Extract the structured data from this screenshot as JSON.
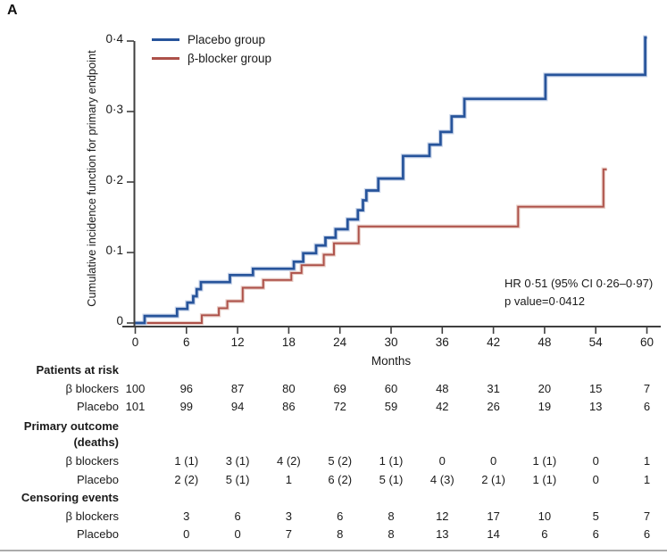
{
  "panel_label": "A",
  "colors": {
    "placebo": "#27549b",
    "placebo_halo": "#c9d5ea",
    "beta_blocker": "#ad5149",
    "beta_blocker_halo": "#e8ccc5",
    "axis": "#3f3f3f",
    "text": "#1a1a1a"
  },
  "legend": [
    {
      "label": "Placebo group",
      "color_key": "placebo"
    },
    {
      "label": "β-blocker group",
      "color_key": "beta_blocker"
    }
  ],
  "annotation": {
    "line1": "HR 0·51 (95% CI 0·26–0·97)",
    "line2": "p value=0·0412"
  },
  "chart_data": {
    "type": "line",
    "subtype": "step-cumulative-incidence",
    "title": "",
    "xlabel": "Months",
    "ylabel": "Cumulative incidence function for primary endpoint",
    "xlim": [
      0,
      60
    ],
    "ylim": [
      0,
      0.4
    ],
    "grid": false,
    "legend_position": "top-left-inside",
    "x_ticks": [
      {
        "v": 0,
        "label": "0"
      },
      {
        "v": 6,
        "label": "6"
      },
      {
        "v": 12,
        "label": "12"
      },
      {
        "v": 18,
        "label": "18"
      },
      {
        "v": 24,
        "label": "24"
      },
      {
        "v": 30,
        "label": "30"
      },
      {
        "v": 36,
        "label": "36"
      },
      {
        "v": 42,
        "label": "42"
      },
      {
        "v": 48,
        "label": "48"
      },
      {
        "v": 54,
        "label": "54"
      },
      {
        "v": 60,
        "label": "60"
      }
    ],
    "y_ticks": [
      {
        "v": 0,
        "label": "0"
      },
      {
        "v": 0.1,
        "label": "0·1"
      },
      {
        "v": 0.2,
        "label": "0·2"
      },
      {
        "v": 0.3,
        "label": "0·3"
      },
      {
        "v": 0.4,
        "label": "0·4"
      }
    ],
    "series": [
      {
        "name": "Placebo group",
        "color_key": "placebo",
        "steps": [
          [
            0,
            0
          ],
          [
            1.1,
            0.01
          ],
          [
            4.9,
            0.02
          ],
          [
            6.1,
            0.029
          ],
          [
            6.8,
            0.038
          ],
          [
            7.2,
            0.048
          ],
          [
            7.7,
            0.058
          ],
          [
            11.1,
            0.068
          ],
          [
            13.8,
            0.077
          ],
          [
            18.6,
            0.087
          ],
          [
            19.7,
            0.099
          ],
          [
            21.2,
            0.11
          ],
          [
            22.3,
            0.121
          ],
          [
            23.5,
            0.133
          ],
          [
            24.9,
            0.147
          ],
          [
            26.1,
            0.16
          ],
          [
            26.7,
            0.174
          ],
          [
            27.1,
            0.188
          ],
          [
            28.5,
            0.205
          ],
          [
            31.4,
            0.237
          ],
          [
            34.5,
            0.253
          ],
          [
            35.8,
            0.271
          ],
          [
            37.1,
            0.293
          ],
          [
            38.6,
            0.318
          ],
          [
            48.1,
            0.352
          ],
          [
            59.8,
            0.405
          ],
          [
            60,
            0.405
          ]
        ]
      },
      {
        "name": "β-blocker group",
        "color_key": "beta_blocker",
        "steps": [
          [
            0,
            0
          ],
          [
            7.8,
            0.011
          ],
          [
            9.8,
            0.021
          ],
          [
            10.8,
            0.031
          ],
          [
            12.6,
            0.05
          ],
          [
            15.0,
            0.061
          ],
          [
            18.3,
            0.071
          ],
          [
            19.5,
            0.082
          ],
          [
            22.1,
            0.097
          ],
          [
            23.3,
            0.113
          ],
          [
            26.2,
            0.137
          ],
          [
            44.9,
            0.165
          ],
          [
            54.9,
            0.218
          ],
          [
            55.3,
            0.218
          ]
        ]
      }
    ]
  },
  "risk_table": {
    "rows": [
      {
        "type": "header",
        "label": "Patients at risk"
      },
      {
        "type": "data",
        "label": "β blockers",
        "start_month": 0,
        "values": [
          "100",
          "96",
          "87",
          "80",
          "69",
          "60",
          "48",
          "31",
          "20",
          "15",
          "7"
        ]
      },
      {
        "type": "data",
        "label": "Placebo",
        "start_month": 0,
        "values": [
          "101",
          "99",
          "94",
          "86",
          "72",
          "59",
          "42",
          "26",
          "19",
          "13",
          "6"
        ]
      },
      {
        "type": "header",
        "label": "Primary outcome"
      },
      {
        "type": "header",
        "label": "(deaths)"
      },
      {
        "type": "data",
        "label": "β blockers",
        "start_month": 6,
        "values": [
          "1 (1)",
          "3 (1)",
          "4 (2)",
          "5 (2)",
          "1 (1)",
          "0",
          "0",
          "1 (1)",
          "0",
          "1"
        ]
      },
      {
        "type": "data",
        "label": "Placebo",
        "start_month": 6,
        "values": [
          "2 (2)",
          "5 (1)",
          "1",
          "6 (2)",
          "5 (1)",
          "4 (3)",
          "2 (1)",
          "1 (1)",
          "0",
          "1"
        ]
      },
      {
        "type": "header",
        "label": "Censoring events"
      },
      {
        "type": "data",
        "label": "β blockers",
        "start_month": 6,
        "values": [
          "3",
          "6",
          "3",
          "6",
          "8",
          "12",
          "17",
          "10",
          "5",
          "7"
        ]
      },
      {
        "type": "data",
        "label": "Placebo",
        "start_month": 6,
        "values": [
          "0",
          "0",
          "7",
          "8",
          "8",
          "13",
          "14",
          "6",
          "6",
          "6"
        ]
      }
    ]
  }
}
